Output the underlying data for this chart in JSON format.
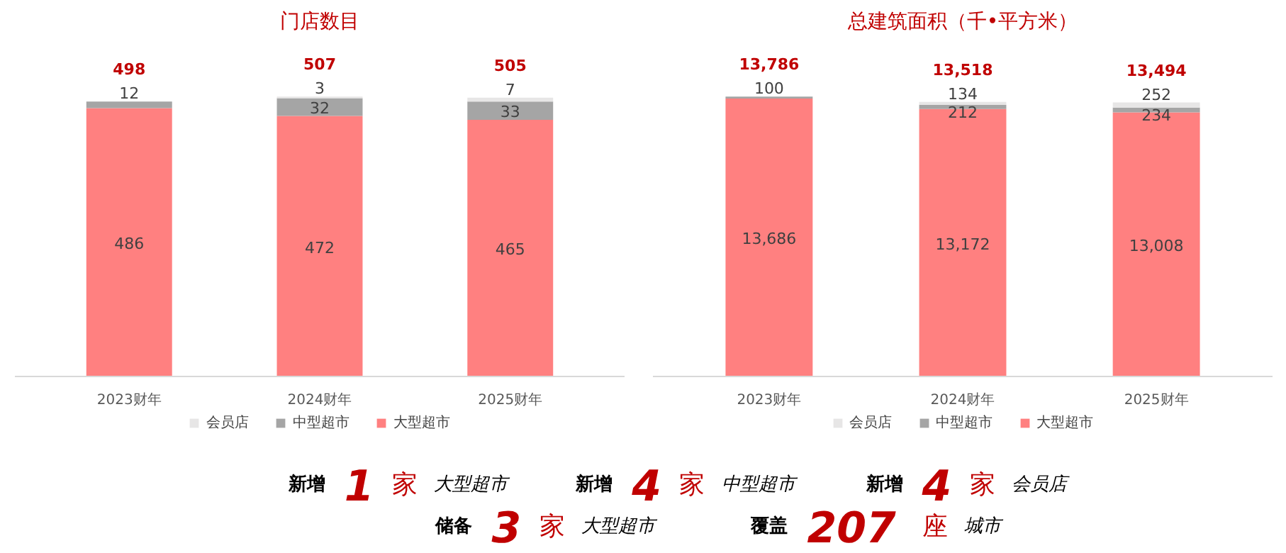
{
  "chart_data": [
    {
      "type": "bar",
      "title": "门店数目",
      "categories": [
        "2023财年",
        "2024财年",
        "2025财年"
      ],
      "stacked": true,
      "data_labels": true,
      "legend": "bottom",
      "totals": [
        "498",
        "507",
        "505"
      ],
      "series": [
        {
          "name": "大型超市",
          "color": "#ff8080",
          "values": [
            486,
            472,
            465
          ]
        },
        {
          "name": "中型超市",
          "color": "#a5a5a5",
          "values": [
            12,
            32,
            33
          ]
        },
        {
          "name": "会员店",
          "color": "#e7e6e6",
          "values": [
            null,
            3,
            7
          ]
        }
      ]
    },
    {
      "type": "bar",
      "title": "总建筑面积（千•平方米）",
      "categories": [
        "2023财年",
        "2024财年",
        "2025财年"
      ],
      "stacked": true,
      "legend": "bottom",
      "totals": [
        "13,786",
        "13,518",
        "13,494"
      ],
      "series": [
        {
          "name": "大型超市",
          "color": "#ff8080",
          "values": [
            13686,
            13172,
            13008
          ],
          "value_labels": [
            "13,686",
            "13,172",
            "13,008"
          ]
        },
        {
          "name": "中型超市",
          "color": "#a5a5a5",
          "values": [
            100,
            212,
            234
          ],
          "value_labels": [
            "100",
            "212",
            "234"
          ]
        },
        {
          "name": "会员店",
          "color": "#e7e6e6",
          "values": [
            null,
            134,
            252
          ],
          "value_labels": [
            null,
            "134",
            "252"
          ]
        }
      ]
    },
    {
      "type": "other",
      "annotations": [
        "新增 1 家 大型超市",
        "新增 4 家 中型超市",
        "新增 4 家 会员店",
        "储备 3 家 大型超市",
        "覆盖 207 座 城市"
      ]
    }
  ]
}
